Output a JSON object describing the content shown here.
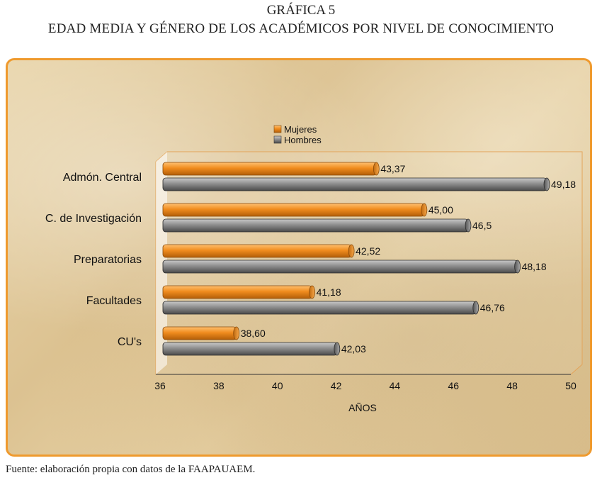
{
  "header": {
    "line1": "GRÁFICA 5",
    "line2": "EDAD MEDIA Y GÉNERO DE LOS ACADÉMICOS POR NIVEL DE CONOCIMIENTO"
  },
  "footer": {
    "source": "Fuente: elaboración propia con datos de la FAAPAUAEM."
  },
  "colors": {
    "mujeres": "#f08c1e",
    "hombres": "#8c8c8c",
    "panel_border": "#ef9a2e",
    "highlight_label": "#a0482a"
  },
  "chart_data": {
    "type": "bar",
    "orientation": "horizontal",
    "title": "EDAD MEDIA Y GÉNERO DE LOS ACADÉMICOS POR NIVEL DE CONOCIMIENTO",
    "xlabel": "AÑOS",
    "ylabel": "",
    "xlim": [
      36,
      50
    ],
    "xticks": [
      36,
      38,
      40,
      42,
      44,
      46,
      48,
      50
    ],
    "xtick_labels": [
      "36",
      "38",
      "40",
      "42",
      "44",
      "46",
      "48",
      "50"
    ],
    "categories": [
      "Admón. Central",
      "C. de Investigación",
      "Preparatorias",
      "Facultades",
      "CU's"
    ],
    "series": [
      {
        "name": "Mujeres",
        "values": [
          43.37,
          45.0,
          42.52,
          41.18,
          38.6
        ],
        "labels": [
          "43,37",
          "45,00",
          "42,52",
          "41,18",
          "38,60"
        ]
      },
      {
        "name": "Hombres",
        "values": [
          49.18,
          46.5,
          48.18,
          46.76,
          42.03
        ],
        "labels": [
          "49,18",
          "46,5",
          "48,18",
          "46,76",
          "42,03"
        ]
      }
    ],
    "legend_position": "top",
    "grid": false
  }
}
